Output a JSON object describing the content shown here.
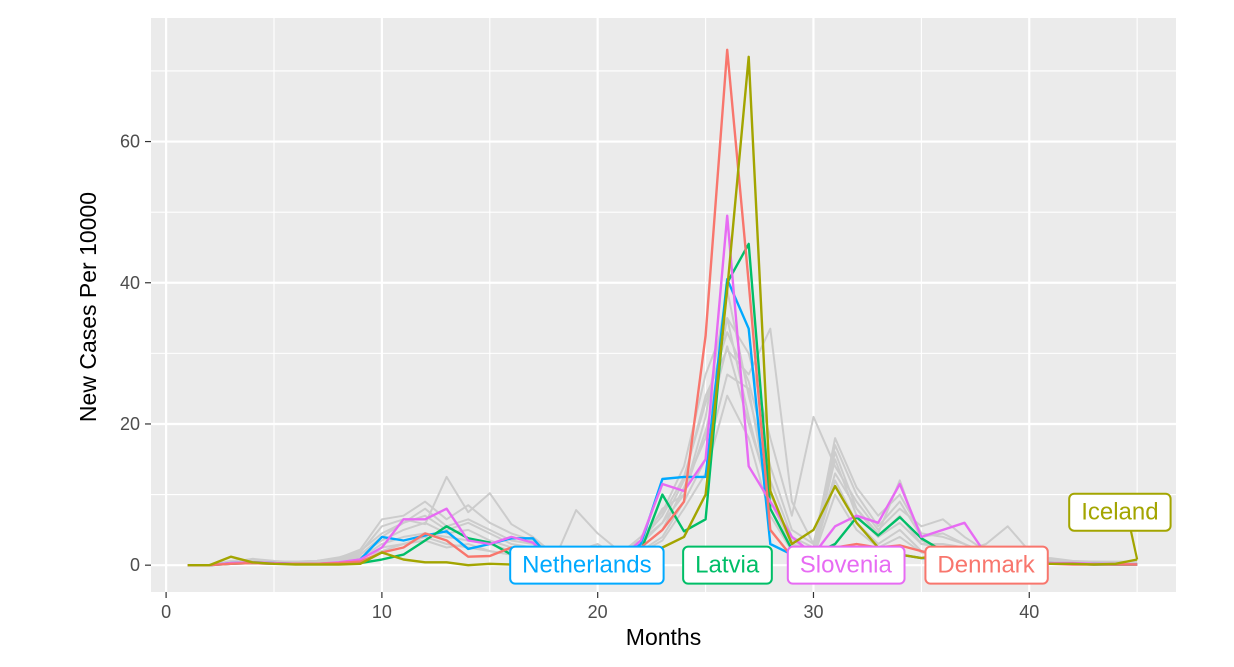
{
  "chart_data": {
    "type": "line",
    "title": "",
    "xlabel": "Months",
    "ylabel": "New Cases Per 10000",
    "xlim": [
      -0.7,
      46.8
    ],
    "ylim": [
      -3.8,
      77.5
    ],
    "x_ticks": [
      0,
      10,
      20,
      30,
      40
    ],
    "y_ticks": [
      0,
      20,
      40,
      60
    ],
    "x_tick_labels": [
      "0",
      "10",
      "20",
      "30",
      "40"
    ],
    "y_tick_labels": [
      "0",
      "20",
      "40",
      "60"
    ],
    "grid": true,
    "legend": "none",
    "background_colors": {
      "panel": "#ebebeb",
      "gridline": "#ffffff",
      "context_lines": "#cccccc"
    },
    "x": [
      1,
      2,
      3,
      4,
      5,
      6,
      7,
      8,
      9,
      10,
      11,
      12,
      13,
      14,
      15,
      16,
      17,
      18,
      19,
      20,
      21,
      22,
      23,
      24,
      25,
      26,
      27,
      28,
      29,
      30,
      31,
      32,
      33,
      34,
      35,
      36,
      37,
      38,
      39,
      40,
      41,
      42,
      43,
      44,
      45
    ],
    "context_series": [
      [
        0,
        0,
        0.5,
        0.8,
        0.5,
        0.5,
        0.6,
        0.9,
        1.8,
        5.5,
        6.5,
        5.8,
        12.5,
        7.5,
        10.2,
        5.8,
        4.0,
        1.5,
        1.0,
        1.5,
        2.0,
        3.5,
        6.0,
        12.0,
        24.0,
        30.5,
        27.0,
        33.5,
        9.0,
        3.0,
        16.0,
        8.0,
        4.5,
        12.0,
        3.5,
        2.0,
        2.0,
        3.0,
        5.5,
        2.0,
        0.8,
        0.5,
        0.5,
        0.5,
        0.5
      ],
      [
        0,
        0,
        0.4,
        0.9,
        0.6,
        0.4,
        0.5,
        1.0,
        2.2,
        6.5,
        7.0,
        9.0,
        6.5,
        8.5,
        6.0,
        4.5,
        3.5,
        1.5,
        1.5,
        2.0,
        1.5,
        4.0,
        7.5,
        14.0,
        27.0,
        35.0,
        30.0,
        18.0,
        7.0,
        21.0,
        14.0,
        9.0,
        5.0,
        8.0,
        5.5,
        6.5,
        4.0,
        2.0,
        1.5,
        1.0,
        1.0,
        0.6,
        0.5,
        0.4,
        0.3
      ],
      [
        0,
        0,
        0.3,
        0.6,
        0.5,
        0.3,
        0.6,
        1.0,
        1.5,
        4.0,
        6.0,
        7.0,
        5.0,
        6.0,
        4.5,
        3.0,
        2.5,
        1.0,
        2.0,
        3.0,
        1.0,
        3.0,
        8.0,
        10.0,
        21.0,
        39.0,
        24.0,
        12.0,
        4.0,
        2.5,
        18.0,
        11.0,
        7.0,
        10.0,
        4.5,
        4.0,
        3.0,
        1.5,
        1.0,
        0.5,
        0.5,
        0.4,
        0.4,
        0.3,
        0.2
      ],
      [
        0,
        0,
        0.2,
        0.4,
        0.3,
        0.2,
        0.3,
        0.6,
        1.0,
        3.0,
        4.0,
        4.5,
        4.0,
        3.5,
        3.0,
        2.0,
        1.5,
        0.8,
        7.8,
        4.5,
        2.0,
        2.5,
        5.0,
        11.0,
        18.0,
        35.0,
        21.0,
        9.0,
        3.0,
        2.0,
        15.0,
        7.0,
        4.0,
        6.0,
        3.0,
        2.5,
        2.0,
        1.0,
        0.8,
        0.5,
        0.4,
        0.3,
        0.2,
        0.2,
        0.1
      ],
      [
        0,
        0,
        0.3,
        0.5,
        0.4,
        0.3,
        0.4,
        0.8,
        1.2,
        2.0,
        3.0,
        3.5,
        2.5,
        3.0,
        2.0,
        1.5,
        1.0,
        0.5,
        1.0,
        1.5,
        1.0,
        2.0,
        4.0,
        9.0,
        15.0,
        27.0,
        25.0,
        8.0,
        2.5,
        1.5,
        12.0,
        6.0,
        3.0,
        5.0,
        2.0,
        2.0,
        1.5,
        0.8,
        0.6,
        0.4,
        0.3,
        0.2,
        0.2,
        0.1,
        0.1
      ],
      [
        0,
        0,
        0.5,
        0.7,
        0.4,
        0.4,
        0.5,
        0.7,
        1.5,
        3.5,
        5.0,
        6.0,
        4.5,
        5.0,
        3.5,
        2.5,
        2.0,
        1.0,
        1.5,
        2.0,
        1.5,
        3.0,
        6.0,
        10.0,
        19.0,
        31.0,
        20.0,
        10.0,
        3.5,
        2.0,
        13.0,
        8.0,
        4.0,
        7.0,
        3.0,
        3.0,
        2.5,
        1.2,
        0.8,
        0.5,
        0.4,
        0.3,
        0.3,
        0.2,
        0.2
      ],
      [
        0,
        0,
        0.2,
        0.3,
        0.3,
        0.2,
        0.3,
        0.5,
        0.8,
        2.5,
        3.0,
        4.0,
        3.0,
        2.5,
        2.0,
        1.5,
        1.2,
        0.6,
        0.8,
        1.2,
        0.8,
        1.8,
        3.5,
        8.0,
        13.0,
        24.0,
        18.0,
        7.0,
        2.0,
        1.2,
        10.0,
        5.0,
        2.5,
        4.0,
        1.8,
        1.5,
        1.2,
        0.6,
        0.5,
        0.3,
        0.2,
        0.2,
        0.1,
        0.1,
        0.1
      ],
      [
        0,
        0,
        0.6,
        0.8,
        0.5,
        0.5,
        0.6,
        1.1,
        2.0,
        4.5,
        6.0,
        8.0,
        5.5,
        6.5,
        5.0,
        3.5,
        3.0,
        1.2,
        1.8,
        2.5,
        1.8,
        3.5,
        7.0,
        12.5,
        23.0,
        33.0,
        26.0,
        14.0,
        5.0,
        3.0,
        17.0,
        10.0,
        5.5,
        9.0,
        4.0,
        4.5,
        3.0,
        1.8,
        1.2,
        0.8,
        0.6,
        0.5,
        0.4,
        0.3,
        0.3
      ]
    ],
    "series": [
      {
        "name": "Netherlands",
        "color": "#00A9FF",
        "values": [
          0,
          0,
          0.3,
          0.4,
          0.3,
          0.2,
          0.2,
          0.3,
          0.8,
          4.0,
          3.5,
          4.2,
          4.8,
          2.3,
          3.0,
          3.8,
          3.8,
          0.3,
          0.2,
          0.4,
          0.5,
          3.0,
          12.2,
          12.5,
          12.5,
          40.5,
          33.5,
          3.0,
          1.5,
          0.5,
          2.5,
          2.0,
          1.2,
          1.5,
          1.0,
          0.8,
          0.6,
          0.5,
          0.4,
          0.3,
          0.2,
          0.2,
          0.1,
          0.1,
          0.1
        ]
      },
      {
        "name": "Latvia",
        "color": "#00BE67",
        "values": [
          0,
          0,
          0.2,
          0.3,
          0.2,
          0.2,
          0.2,
          0.2,
          0.3,
          0.8,
          1.5,
          3.5,
          5.5,
          3.8,
          3.2,
          1.5,
          0.8,
          0.3,
          0.2,
          0.5,
          0.8,
          2.0,
          10.0,
          4.8,
          6.5,
          40.0,
          45.5,
          8.0,
          2.2,
          1.5,
          3.0,
          6.8,
          4.2,
          6.8,
          3.8,
          2.0,
          1.5,
          0.8,
          0.5,
          0.4,
          0.3,
          0.2,
          0.2,
          0.1,
          0.1
        ]
      },
      {
        "name": "Slovenia",
        "color": "#E76BF3",
        "values": [
          0,
          0,
          0.3,
          0.4,
          0.3,
          0.2,
          0.2,
          0.4,
          0.8,
          2.5,
          6.5,
          6.5,
          8.0,
          3.5,
          3.0,
          4.0,
          3.2,
          0.5,
          0.3,
          0.5,
          0.8,
          3.5,
          11.5,
          10.5,
          15.0,
          49.5,
          14.0,
          9.0,
          4.0,
          1.5,
          5.5,
          7.0,
          6.0,
          11.5,
          4.0,
          5.0,
          6.0,
          1.5,
          0.5,
          0.4,
          0.3,
          0.3,
          0.2,
          0.2,
          0.1
        ]
      },
      {
        "name": "Denmark",
        "color": "#F8766D",
        "values": [
          0,
          0,
          0.2,
          0.3,
          0.2,
          0.2,
          0.2,
          0.3,
          0.5,
          1.8,
          2.5,
          4.5,
          3.5,
          1.2,
          1.3,
          2.5,
          1.5,
          0.3,
          0.2,
          0.5,
          0.8,
          2.5,
          5.0,
          9.0,
          32.5,
          73.0,
          40.0,
          5.0,
          1.2,
          0.8,
          2.5,
          3.0,
          2.5,
          2.8,
          2.0,
          1.0,
          0.8,
          0.5,
          0.3,
          0.2,
          0.2,
          0.1,
          0.1,
          0.1,
          0.1
        ]
      },
      {
        "name": "Iceland",
        "color": "#A3A500",
        "values": [
          0,
          0,
          1.2,
          0.4,
          0.2,
          0.1,
          0.1,
          0.1,
          0.2,
          1.8,
          0.8,
          0.4,
          0.4,
          0.0,
          0.2,
          0.1,
          0.1,
          0.2,
          0.3,
          0.2,
          0.2,
          0.5,
          2.5,
          4.0,
          10.0,
          39.0,
          72.0,
          10.5,
          3.0,
          5.0,
          11.2,
          6.0,
          2.5,
          1.5,
          1.0,
          1.5,
          1.2,
          0.8,
          0.5,
          0.3,
          0.2,
          0.2,
          0.1,
          0.2,
          0.8
        ]
      }
    ]
  },
  "labels": [
    {
      "text": "Netherlands",
      "series_index": 0,
      "x": 19.5,
      "y": 0.0
    },
    {
      "text": "Latvia",
      "series_index": 1,
      "x": 26.0,
      "y": 0.0
    },
    {
      "text": "Slovenia",
      "series_index": 2,
      "x": 31.5,
      "y": 0.0
    },
    {
      "text": "Denmark",
      "series_index": 3,
      "x": 38.0,
      "y": 0.0
    },
    {
      "text": "Iceland",
      "series_index": 4,
      "x": 44.2,
      "y": 7.5,
      "anchor_x": 45,
      "anchor_y": 0.8
    }
  ]
}
